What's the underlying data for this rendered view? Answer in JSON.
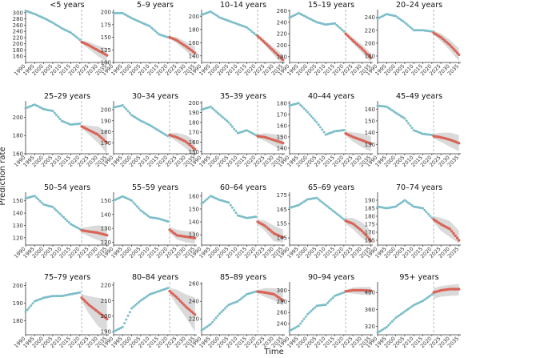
{
  "figure": {
    "ylabel": "Prediction rate",
    "xlabel": "Time",
    "forecast_start": 2021,
    "x_ticks": [
      1990,
      1995,
      2000,
      2005,
      2010,
      2015,
      2020,
      2025,
      2030,
      2035
    ],
    "colors": {
      "history": "#7bbdc8",
      "forecast": "#d96457",
      "band": "#d3d3d3",
      "divider": "#9aa8b4",
      "axis": "#333333"
    }
  },
  "chart_data": [
    {
      "type": "line",
      "title": "<5 years",
      "ylim": [
        140,
        310
      ],
      "yticks": [
        160,
        180,
        200,
        220,
        240,
        260,
        280,
        300
      ],
      "history": {
        "x": [
          1990,
          1995,
          2000,
          2005,
          2010,
          2015,
          2020
        ],
        "y": [
          306,
          296,
          283,
          268,
          250,
          236,
          213
        ]
      },
      "forecast": {
        "x": [
          2021,
          2025,
          2030,
          2035
        ],
        "y": [
          206,
          195,
          179,
          163
        ],
        "lower": [
          201,
          183,
          160,
          141
        ],
        "upper": [
          211,
          206,
          194,
          186
        ]
      }
    },
    {
      "type": "line",
      "title": "5–9 years",
      "ylim": [
        100,
        205
      ],
      "yticks": [
        100,
        125,
        150,
        175,
        200
      ],
      "history": {
        "x": [
          1990,
          1995,
          2000,
          2005,
          2010,
          2015,
          2020
        ],
        "y": [
          198,
          198,
          188,
          180,
          172,
          156,
          150
        ]
      },
      "forecast": {
        "x": [
          2021,
          2025,
          2030,
          2035
        ],
        "y": [
          150,
          144,
          132,
          119
        ],
        "lower": [
          148,
          138,
          123,
          106
        ],
        "upper": [
          152,
          150,
          141,
          132
        ]
      }
    },
    {
      "type": "line",
      "title": "10–14 years",
      "ylim": [
        130,
        210
      ],
      "yticks": [
        140,
        160,
        180,
        200
      ],
      "history": {
        "x": [
          1990,
          1995,
          2000,
          2005,
          2010,
          2015,
          2020
        ],
        "y": [
          202,
          207,
          198,
          193,
          188,
          183,
          172
        ]
      },
      "forecast": {
        "x": [
          2021,
          2025,
          2030,
          2035
        ],
        "y": [
          170,
          160,
          147,
          134
        ],
        "lower": [
          168,
          156,
          141,
          127
        ],
        "upper": [
          172,
          164,
          153,
          141
        ]
      }
    },
    {
      "type": "line",
      "title": "15–19 years",
      "ylim": [
        170,
        262
      ],
      "yticks": [
        180,
        200,
        220,
        240,
        260
      ],
      "history": {
        "x": [
          1990,
          1995,
          2000,
          2005,
          2010,
          2015,
          2020
        ],
        "y": [
          248,
          256,
          248,
          240,
          236,
          238,
          224
        ]
      },
      "forecast": {
        "x": [
          2021,
          2025,
          2030,
          2035
        ],
        "y": [
          220,
          208,
          194,
          178
        ],
        "lower": [
          217,
          203,
          187,
          170
        ],
        "upper": [
          223,
          213,
          201,
          186
        ]
      }
    },
    {
      "type": "line",
      "title": "20–24 years",
      "ylim": [
        170,
        252
      ],
      "yticks": [
        180,
        200,
        220,
        240
      ],
      "history": {
        "x": [
          1990,
          1995,
          2000,
          2005,
          2010,
          2015,
          2020
        ],
        "y": [
          238,
          245,
          242,
          232,
          220,
          220,
          218
        ]
      },
      "forecast": {
        "x": [
          2021,
          2025,
          2030,
          2035
        ],
        "y": [
          216,
          209,
          197,
          182
        ],
        "lower": [
          213,
          203,
          189,
          172
        ],
        "upper": [
          219,
          215,
          205,
          192
        ]
      }
    },
    {
      "type": "line",
      "title": "25–29 years",
      "ylim": [
        160,
        218
      ],
      "yticks": [
        160,
        180,
        200
      ],
      "history": {
        "x": [
          1990,
          1995,
          2000,
          2005,
          2010,
          2015,
          2020
        ],
        "y": [
          210,
          214,
          209,
          207,
          196,
          192,
          193
        ]
      },
      "forecast": {
        "x": [
          2021,
          2025,
          2030,
          2035
        ],
        "y": [
          190,
          186,
          181,
          172
        ],
        "lower": [
          188,
          181,
          172,
          160
        ],
        "upper": [
          192,
          191,
          190,
          184
        ]
      }
    },
    {
      "type": "line",
      "title": "30–34 years",
      "ylim": [
        160,
        208
      ],
      "yticks": [
        170,
        180,
        190,
        200
      ],
      "history": {
        "x": [
          1990,
          1995,
          2000,
          2005,
          2010,
          2015,
          2020
        ],
        "y": [
          202,
          204,
          195,
          190,
          186,
          181,
          176
        ]
      },
      "forecast": {
        "x": [
          2021,
          2025,
          2030,
          2035
        ],
        "y": [
          177,
          175,
          171,
          164
        ],
        "lower": [
          175,
          171,
          165,
          156
        ],
        "upper": [
          179,
          179,
          177,
          172
        ]
      }
    },
    {
      "type": "line",
      "title": "35–39 years",
      "ylim": [
        148,
        202
      ],
      "yticks": [
        150,
        160,
        170,
        180,
        190,
        200
      ],
      "history": {
        "x": [
          1990,
          1995,
          2000,
          2005,
          2010,
          2015,
          2020
        ],
        "y": [
          193,
          196,
          188,
          180,
          169,
          172,
          167
        ]
      },
      "forecast": {
        "x": [
          2021,
          2025,
          2030,
          2035
        ],
        "y": [
          166,
          165,
          162,
          159
        ],
        "lower": [
          164,
          161,
          156,
          151
        ],
        "upper": [
          168,
          169,
          168,
          167
        ]
      }
    },
    {
      "type": "line",
      "title": "40–44 years",
      "ylim": [
        135,
        182
      ],
      "yticks": [
        140,
        150,
        160,
        170,
        180
      ],
      "history": {
        "x": [
          1990,
          1995,
          2000,
          2005,
          2010,
          2015,
          2020
        ],
        "y": [
          178,
          180,
          172,
          163,
          152,
          155,
          156
        ]
      },
      "forecast": {
        "x": [
          2021,
          2025,
          2030,
          2035
        ],
        "y": [
          153,
          150,
          147,
          144
        ],
        "lower": [
          151,
          146,
          141,
          137
        ],
        "upper": [
          155,
          154,
          153,
          151
        ]
      }
    },
    {
      "type": "line",
      "title": "45–49 years",
      "ylim": [
        122,
        167
      ],
      "yticks": [
        130,
        140,
        150,
        160
      ],
      "history": {
        "x": [
          1990,
          1995,
          2000,
          2005,
          2010,
          2015,
          2020
        ],
        "y": [
          163,
          162,
          157,
          152,
          142,
          139,
          138
        ]
      },
      "forecast": {
        "x": [
          2021,
          2025,
          2030,
          2035
        ],
        "y": [
          137,
          136,
          134,
          131
        ],
        "lower": [
          135,
          132,
          128,
          124
        ],
        "upper": [
          139,
          140,
          140,
          138
        ]
      }
    },
    {
      "type": "line",
      "title": "50–54 years",
      "ylim": [
        114,
        157
      ],
      "yticks": [
        120,
        130,
        140,
        150
      ],
      "history": {
        "x": [
          1990,
          1995,
          2000,
          2005,
          2010,
          2015,
          2020
        ],
        "y": [
          152,
          154,
          147,
          145,
          138,
          131,
          127
        ]
      },
      "forecast": {
        "x": [
          2021,
          2025,
          2030,
          2035
        ],
        "y": [
          126,
          125,
          124,
          122
        ],
        "lower": [
          124,
          121,
          118,
          115
        ],
        "upper": [
          128,
          129,
          130,
          129
        ]
      }
    },
    {
      "type": "line",
      "title": "55–59 years",
      "ylim": [
        118,
        156
      ],
      "yticks": [
        120,
        130,
        140,
        150
      ],
      "history": {
        "x": [
          1990,
          1995,
          2000,
          2005,
          2010,
          2015,
          2020
        ],
        "y": [
          150,
          153,
          150,
          143,
          138,
          137,
          135
        ]
      },
      "forecast": {
        "x": [
          2021,
          2025,
          2030,
          2035
        ],
        "y": [
          129,
          125,
          124,
          123
        ],
        "lower": [
          127,
          122,
          120,
          119
        ],
        "upper": [
          131,
          129,
          128,
          128
        ]
      }
    },
    {
      "type": "line",
      "title": "60–64 years",
      "ylim": [
        122,
        163
      ],
      "yticks": [
        130,
        140,
        150,
        160
      ],
      "history": {
        "x": [
          1990,
          1995,
          2000,
          2005,
          2010,
          2015,
          2020
        ],
        "y": [
          154,
          160,
          157,
          155,
          145,
          143,
          144
        ]
      },
      "forecast": {
        "x": [
          2021,
          2025,
          2030,
          2035
        ],
        "y": [
          140,
          137,
          131,
          128
        ],
        "lower": [
          138,
          133,
          125,
          124
        ],
        "upper": [
          142,
          141,
          137,
          134
        ]
      }
    },
    {
      "type": "line",
      "title": "65–69 years",
      "ylim": [
        140,
        177
      ],
      "yticks": [
        145,
        155,
        165,
        175
      ],
      "history": {
        "x": [
          1990,
          1995,
          2000,
          2005,
          2010,
          2015,
          2020
        ],
        "y": [
          166,
          168,
          172,
          173,
          168,
          163,
          158
        ]
      },
      "forecast": {
        "x": [
          2021,
          2025,
          2030,
          2035
        ],
        "y": [
          157,
          155,
          150,
          143
        ],
        "lower": [
          155,
          151,
          145,
          140
        ],
        "upper": [
          159,
          159,
          156,
          150
        ]
      }
    },
    {
      "type": "line",
      "title": "70–74 years",
      "ylim": [
        162,
        195
      ],
      "yticks": [
        165,
        170,
        175,
        180,
        185,
        190
      ],
      "history": {
        "x": [
          1990,
          1995,
          2000,
          2005,
          2010,
          2015,
          2020
        ],
        "y": [
          186,
          185,
          186,
          190,
          186,
          185,
          179
        ]
      },
      "forecast": {
        "x": [
          2021,
          2025,
          2030,
          2035
        ],
        "y": [
          178,
          175,
          172,
          165
        ],
        "lower": [
          176,
          171,
          167,
          163
        ],
        "upper": [
          180,
          179,
          177,
          171
        ]
      }
    },
    {
      "type": "line",
      "title": "75–79 years",
      "ylim": [
        172,
        202
      ],
      "yticks": [
        180,
        190,
        200
      ],
      "history": {
        "x": [
          1990,
          1995,
          2000,
          2005,
          2010,
          2015,
          2020
        ],
        "y": [
          185,
          191,
          193,
          194,
          194,
          195,
          196
        ]
      },
      "forecast": {
        "x": [
          2021,
          2025,
          2030,
          2035
        ],
        "y": [
          193,
          189,
          185,
          181
        ],
        "lower": [
          191,
          184,
          177,
          173
        ],
        "upper": [
          195,
          194,
          193,
          192
        ]
      }
    },
    {
      "type": "line",
      "title": "80–84 years",
      "ylim": [
        188,
        222
      ],
      "yticks": [
        190,
        200,
        210,
        220
      ],
      "history": {
        "x": [
          1990,
          1995,
          2000,
          2005,
          2010,
          2015,
          2020
        ],
        "y": [
          190,
          193,
          205,
          210,
          214,
          216,
          218
        ]
      },
      "forecast": {
        "x": [
          2021,
          2025,
          2030,
          2035
        ],
        "y": [
          216,
          212,
          206,
          201
        ],
        "lower": [
          214,
          207,
          199,
          190
        ],
        "upper": [
          218,
          217,
          214,
          212
        ]
      }
    },
    {
      "type": "line",
      "title": "85–89 years",
      "ylim": [
        202,
        262
      ],
      "yticks": [
        220,
        240,
        260
      ],
      "history": {
        "x": [
          1990,
          1995,
          2000,
          2005,
          2010,
          2015,
          2020
        ],
        "y": [
          207,
          214,
          226,
          236,
          240,
          248,
          251
        ]
      },
      "forecast": {
        "x": [
          2021,
          2025,
          2030,
          2035
        ],
        "y": [
          251,
          250,
          248,
          241
        ],
        "lower": [
          249,
          245,
          241,
          235
        ],
        "upper": [
          253,
          255,
          255,
          254
        ]
      }
    },
    {
      "type": "line",
      "title": "90–94 years",
      "ylim": [
        220,
        315
      ],
      "yticks": [
        240,
        260,
        280,
        300
      ],
      "history": {
        "x": [
          1990,
          1995,
          2000,
          2005,
          2010,
          2015,
          2020
        ],
        "y": [
          227,
          236,
          257,
          272,
          274,
          290,
          296
        ]
      },
      "forecast": {
        "x": [
          2021,
          2025,
          2030,
          2035
        ],
        "y": [
          298,
          300,
          300,
          299
        ],
        "lower": [
          296,
          294,
          292,
          291
        ],
        "upper": [
          300,
          305,
          306,
          306
        ]
      }
    },
    {
      "type": "line",
      "title": "95+ years",
      "ylim": [
        300,
        425
      ],
      "yticks": [
        320,
        360,
        400
      ],
      "history": {
        "x": [
          1990,
          1995,
          2000,
          2005,
          2010,
          2015,
          2020
        ],
        "y": [
          305,
          318,
          340,
          355,
          370,
          380,
          395
        ]
      },
      "forecast": {
        "x": [
          2021,
          2025,
          2030,
          2035
        ],
        "y": [
          400,
          405,
          408,
          408
        ],
        "lower": [
          385,
          390,
          392,
          393
        ],
        "upper": [
          410,
          415,
          418,
          420
        ]
      }
    }
  ]
}
